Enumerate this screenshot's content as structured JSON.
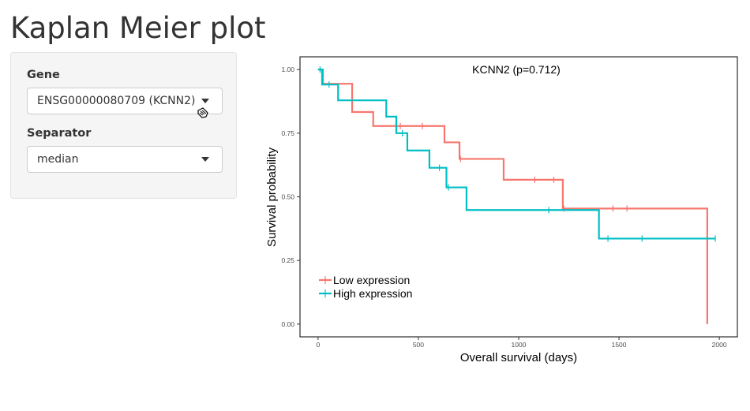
{
  "page": {
    "title": "Kaplan Meier plot"
  },
  "controls": {
    "gene": {
      "label": "Gene",
      "value": "ENSG00000080709 (KCNN2)"
    },
    "separator": {
      "label": "Separator",
      "value": "median"
    }
  },
  "chart_data": {
    "type": "line",
    "title": "KCNN2 (p=0.712)",
    "xlabel": "Overall survival (days)",
    "ylabel": "Survival probability",
    "xlim": [
      -90,
      2090
    ],
    "ylim": [
      -0.05,
      1.05
    ],
    "x_ticks": [
      0,
      500,
      1000,
      1500,
      2000
    ],
    "y_ticks": [
      0.0,
      0.25,
      0.5,
      0.75,
      1.0
    ],
    "y_tick_labels": [
      "0.00",
      "0.25",
      "0.50",
      "0.75",
      "1.00"
    ],
    "grid": false,
    "legend": "bottom-left",
    "series": [
      {
        "name": "Low expression",
        "color": "#f8766d",
        "steps": [
          [
            0,
            1.0
          ],
          [
            25,
            0.944
          ],
          [
            170,
            0.833
          ],
          [
            275,
            0.778
          ],
          [
            630,
            0.714
          ],
          [
            705,
            0.649
          ],
          [
            925,
            0.567
          ],
          [
            1220,
            0.454
          ],
          [
            1940,
            0.0
          ]
        ],
        "censored": [
          [
            410,
            0.778
          ],
          [
            520,
            0.778
          ],
          [
            710,
            0.649
          ],
          [
            1080,
            0.567
          ],
          [
            1175,
            0.567
          ],
          [
            1225,
            0.454
          ],
          [
            1470,
            0.454
          ],
          [
            1540,
            0.454
          ]
        ]
      },
      {
        "name": "High expression",
        "color": "#00bfc4",
        "steps": [
          [
            0,
            1.0
          ],
          [
            20,
            0.941
          ],
          [
            100,
            0.879
          ],
          [
            340,
            0.815
          ],
          [
            390,
            0.75
          ],
          [
            445,
            0.682
          ],
          [
            555,
            0.614
          ],
          [
            640,
            0.537
          ],
          [
            740,
            0.448
          ],
          [
            1400,
            0.336
          ],
          [
            1980,
            0.336
          ]
        ],
        "censored": [
          [
            10,
            1.0
          ],
          [
            55,
            0.941
          ],
          [
            420,
            0.75
          ],
          [
            605,
            0.614
          ],
          [
            650,
            0.537
          ],
          [
            1150,
            0.448
          ],
          [
            1445,
            0.336
          ],
          [
            1615,
            0.336
          ],
          [
            1980,
            0.336
          ]
        ]
      }
    ]
  }
}
